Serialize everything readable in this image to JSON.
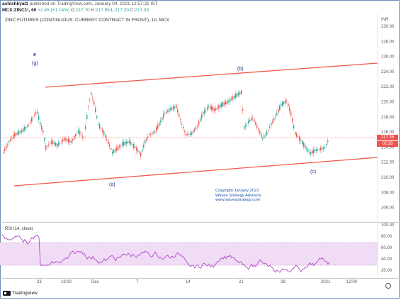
{
  "header": {
    "publisher": "ashishkyal1",
    "meta": "published on TradingView.com, January 04, 2021 12:57:32 IST"
  },
  "quote": {
    "symbol": "MCX:ZINC1!, 60",
    "change": "+2.45 (+1.14%)",
    "ohlc": [
      {
        "label": "O:",
        "value": "217.70"
      },
      {
        "label": "H:",
        "value": "217.85"
      },
      {
        "label": "L:",
        "value": "217.20"
      },
      {
        "label": "C:",
        "value": "217.35"
      }
    ]
  },
  "chart_title": "ZINC FUTURES (CONTINUOUS: CURRENT CONTRACT IN FRONT), 1h, MCX",
  "inr_label": "INR",
  "price_axis": [
    "230.00",
    "228.00",
    "226.00",
    "224.00",
    "222.00",
    "220.00",
    "218.00",
    "216.00",
    "214.00",
    "212.00",
    "210.00",
    "208.00",
    "206.00"
  ],
  "price_badges": {
    "price": "217.35",
    "countdown": "02:28"
  },
  "wave_labels": [
    {
      "text": "e"
    },
    {
      "text": "(g)"
    },
    {
      "text": "(a)"
    },
    {
      "text": "(b)"
    },
    {
      "text": "(c)"
    }
  ],
  "copyright": [
    "Copyright January 2021",
    "Waves Strategy Advisors",
    "www.wavesstrategy.com"
  ],
  "rsi": {
    "title": "RSI (14, close)",
    "axis": [
      "100.00",
      "80.00",
      "60.00",
      "40.00",
      "20.00"
    ],
    "upper_band": 70,
    "lower_band": 30
  },
  "x_axis": [
    "23",
    "18:00",
    "Dec",
    "7",
    "14",
    "21",
    "28",
    "2021",
    "12:00"
  ],
  "footer": {
    "brand": "TradingView"
  },
  "colors": {
    "channel": "#f05a4a",
    "up": "#26a69a",
    "down": "#ef5350",
    "rsi_line": "#b048c8",
    "rsi_band": "#f1dcf6"
  }
}
